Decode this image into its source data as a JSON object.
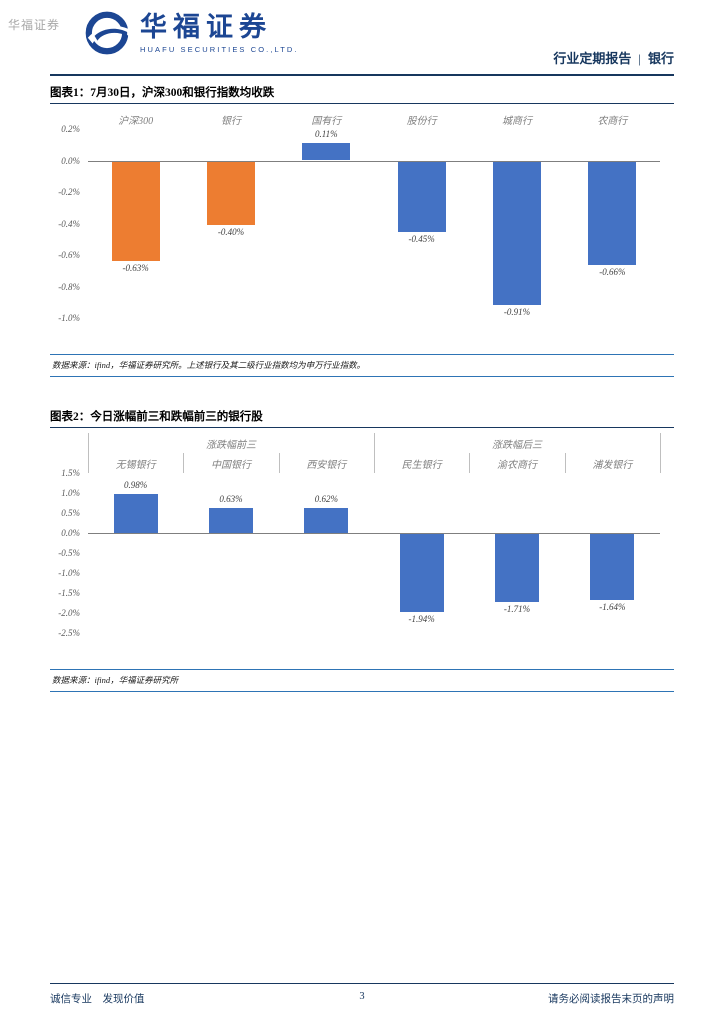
{
  "page": {
    "watermark": "华福证券"
  },
  "header": {
    "logo_text": "华福证券",
    "logo_subtext": "HUAFU SECURITIES CO.,LTD.",
    "report_type": "行业定期报告",
    "divider": "|",
    "industry": "银行"
  },
  "footer": {
    "left": "诚信专业　发现价值",
    "page_number": "3",
    "right": "请务必阅读报告末页的声明"
  },
  "colors": {
    "navy": "#17375E",
    "logo_blue": "#1C4693",
    "orange_bar": "#ED7D31",
    "blue_bar": "#4472C4"
  },
  "chart_data": [
    {
      "type": "bar",
      "title": "图表1：7月30日，沪深300和银行指数均收跌",
      "categories": [
        "沪深300",
        "银行",
        "国有行",
        "股份行",
        "城商行",
        "农商行"
      ],
      "values": [
        -0.63,
        -0.4,
        0.11,
        -0.45,
        -0.91,
        -0.66
      ],
      "labels": [
        "-0.63%",
        "-0.40%",
        "0.11%",
        "-0.45%",
        "-0.91%",
        "-0.66%"
      ],
      "colors": [
        "#ED7D31",
        "#ED7D31",
        "#4472C4",
        "#4472C4",
        "#4472C4",
        "#4472C4"
      ],
      "ylim": [
        -1.0,
        0.2
      ],
      "ytick_step": 0.2,
      "ytick_labels": [
        "0.2%",
        "0.0%",
        "-0.2%",
        "-0.4%",
        "-0.6%",
        "-0.8%",
        "-1.0%"
      ],
      "grid": false,
      "legend": false,
      "source": "数据来源：ifind，华福证券研究所。上述银行及其二级行业指数均为申万行业指数。"
    },
    {
      "type": "bar",
      "title": "图表2：今日涨幅前三和跌幅前三的银行股",
      "group_headers": [
        {
          "label": "涨跌幅前三",
          "span": 3
        },
        {
          "label": "涨跌幅后三",
          "span": 3
        }
      ],
      "categories": [
        "无锡银行",
        "中国银行",
        "西安银行",
        "民生银行",
        "渝农商行",
        "浦发银行"
      ],
      "values": [
        0.98,
        0.63,
        0.62,
        -1.94,
        -1.71,
        -1.64
      ],
      "labels": [
        "0.98%",
        "0.63%",
        "0.62%",
        "-1.94%",
        "-1.71%",
        "-1.64%"
      ],
      "colors": [
        "#4472C4",
        "#4472C4",
        "#4472C4",
        "#4472C4",
        "#4472C4",
        "#4472C4"
      ],
      "ylim": [
        -2.5,
        1.5
      ],
      "ytick_step": 0.5,
      "ytick_labels": [
        "1.5%",
        "1.0%",
        "0.5%",
        "0.0%",
        "-0.5%",
        "-1.0%",
        "-1.5%",
        "-2.0%",
        "-2.5%"
      ],
      "grid": false,
      "legend": false,
      "source": "数据来源：ifind，华福证券研究所"
    }
  ]
}
